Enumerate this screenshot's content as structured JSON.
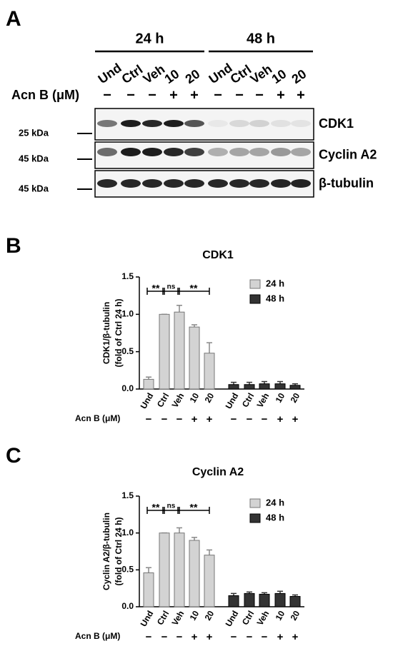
{
  "panel_labels": [
    "A",
    "B",
    "C"
  ],
  "blot": {
    "time_labels": [
      "24 h",
      "48 h"
    ],
    "lanes": [
      "Und",
      "Ctrl",
      "Veh",
      "10",
      "20",
      "Und",
      "Ctrl",
      "Veh",
      "10",
      "20"
    ],
    "treatment_label": "Acn B (μM)",
    "treatment_signs": [
      "−",
      "−",
      "−",
      "+",
      "+",
      "−",
      "−",
      "−",
      "+",
      "+"
    ],
    "proteins": [
      "CDK1",
      "Cyclin A2",
      "β-tubulin"
    ],
    "markers": [
      "25 kDa",
      "45 kDa",
      "45 kDa"
    ]
  },
  "chart_data": [
    {
      "type": "bar",
      "title": "CDK1",
      "ylabel": [
        "CDK1/β-tubulin",
        "(fold of Ctrl 24 h)"
      ],
      "categories": [
        "Und",
        "Ctrl",
        "Veh",
        "10",
        "20"
      ],
      "treatment_label": "Acn B (μM)",
      "treatment_signs": [
        "−",
        "−",
        "−",
        "+",
        "+"
      ],
      "annotations": [
        "**",
        "ns",
        "**"
      ],
      "series": [
        {
          "name": "24 h",
          "color": "#d3d3d3",
          "values": [
            0.13,
            1.0,
            1.03,
            0.83,
            0.48
          ],
          "errors": [
            0.03,
            0,
            0.09,
            0.03,
            0.14
          ]
        },
        {
          "name": "48 h",
          "color": "#333333",
          "values": [
            0.06,
            0.06,
            0.07,
            0.07,
            0.05
          ],
          "errors": [
            0.03,
            0.03,
            0.03,
            0.03,
            0.02
          ]
        }
      ],
      "ylim": [
        0,
        1.5
      ],
      "yticks": [
        {
          "value": 0,
          "label": "0.0"
        },
        0.5,
        {
          "value": 1,
          "label": "1.0"
        },
        1.5
      ],
      "legend": "upper right"
    },
    {
      "type": "bar",
      "title": "Cyclin A2",
      "ylabel": [
        "Cyclin A2/β-tubulin",
        "(fold of Ctrl 24 h)"
      ],
      "categories": [
        "Und",
        "Ctrl",
        "Veh",
        "10",
        "20"
      ],
      "treatment_label": "Acn B (μM)",
      "treatment_signs": [
        "−",
        "−",
        "−",
        "+",
        "+"
      ],
      "annotations": [
        "**",
        "ns",
        "**"
      ],
      "series": [
        {
          "name": "24 h",
          "color": "#d3d3d3",
          "values": [
            0.46,
            1.0,
            1.0,
            0.9,
            0.7
          ],
          "errors": [
            0.07,
            0,
            0.07,
            0.04,
            0.07
          ]
        },
        {
          "name": "48 h",
          "color": "#333333",
          "values": [
            0.15,
            0.18,
            0.17,
            0.18,
            0.14
          ],
          "errors": [
            0.03,
            0.02,
            0.02,
            0.03,
            0.02
          ]
        }
      ],
      "ylim": [
        0,
        1.5
      ],
      "yticks": [
        {
          "value": 0,
          "label": "0.0"
        },
        0.5,
        {
          "value": 1,
          "label": "1.0"
        },
        1.5
      ],
      "legend": "upper right"
    }
  ]
}
